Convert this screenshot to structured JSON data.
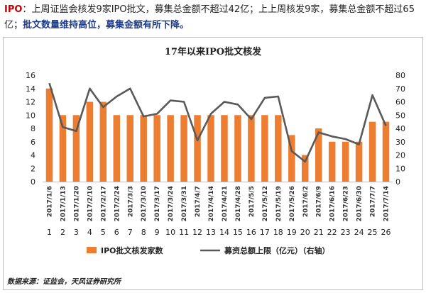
{
  "intro": {
    "tag": "IPO",
    "colon": "：",
    "plain": "上周证监会核发9家IPO批文，募集总金额不超过42亿；上上周核发9家，募集总金额不超过65亿；",
    "highlight": "批文数量维持高位，募集金额有所下降。"
  },
  "source": "数据来源：证监会，天风证券研究所",
  "colors": {
    "bar": "#ed7d31",
    "line": "#595959",
    "tag": "#c00000",
    "highlight": "#1f3d8a"
  },
  "chart_data": {
    "type": "bar",
    "title": "17年以来IPO批文核发",
    "categories": [
      "2017/1/6",
      "2017/1/13",
      "2017/1/20",
      "2017/2/10",
      "2017/2/17",
      "2017/2/24",
      "2017/3/3",
      "2017/3/10",
      "2017/3/17",
      "2017/3/24",
      "2017/3/31",
      "2017/4/7",
      "2017/4/14",
      "2017/4/21",
      "2017/4/28",
      "2017/5/5",
      "2017/5/12",
      "2017/5/19",
      "2017/5/26",
      "2017/6/2",
      "2017/6/9",
      "2017/6/16",
      "2017/6/23",
      "2017/6/30",
      "2017/7/7",
      "2017/7/14"
    ],
    "index_labels": [
      "1",
      "2",
      "3",
      "4",
      "5",
      "6",
      "7",
      "8",
      "9",
      "10",
      "11",
      "12",
      "13",
      "14",
      "15",
      "16",
      "17",
      "18",
      "19",
      "20",
      "21",
      "22",
      "23",
      "24",
      "25",
      "26"
    ],
    "series": [
      {
        "name": "IPO批文核发家数",
        "type": "bar",
        "axis": "left",
        "values": [
          14,
          10,
          10,
          12,
          12,
          10,
          10,
          10,
          10,
          10,
          10,
          10,
          10,
          10,
          10,
          10,
          10,
          10,
          7,
          4,
          8,
          6,
          6,
          6,
          9,
          9
        ]
      },
      {
        "name": "募资总额上限（亿元）（右轴）",
        "type": "line",
        "axis": "right",
        "values": [
          74,
          41,
          38,
          70,
          56,
          64,
          70,
          49,
          51,
          61,
          60,
          31,
          51,
          60,
          58,
          47,
          63,
          64,
          23,
          15,
          37,
          34,
          32,
          28,
          65,
          42
        ]
      }
    ],
    "left_axis": {
      "ylim": [
        0,
        16
      ],
      "ticks": [
        "0",
        "2",
        "4",
        "6",
        "8",
        "10",
        "12",
        "14",
        "16"
      ]
    },
    "right_axis": {
      "ylim": [
        0,
        80
      ],
      "ticks": [
        "0",
        "10",
        "20",
        "30",
        "40",
        "50",
        "60",
        "70",
        "80"
      ]
    },
    "legend": {
      "position": "bottom",
      "bar_label": "IPO批文核发家数",
      "line_label": "募资总额上限（亿元）（右轴）"
    },
    "grid": false
  }
}
